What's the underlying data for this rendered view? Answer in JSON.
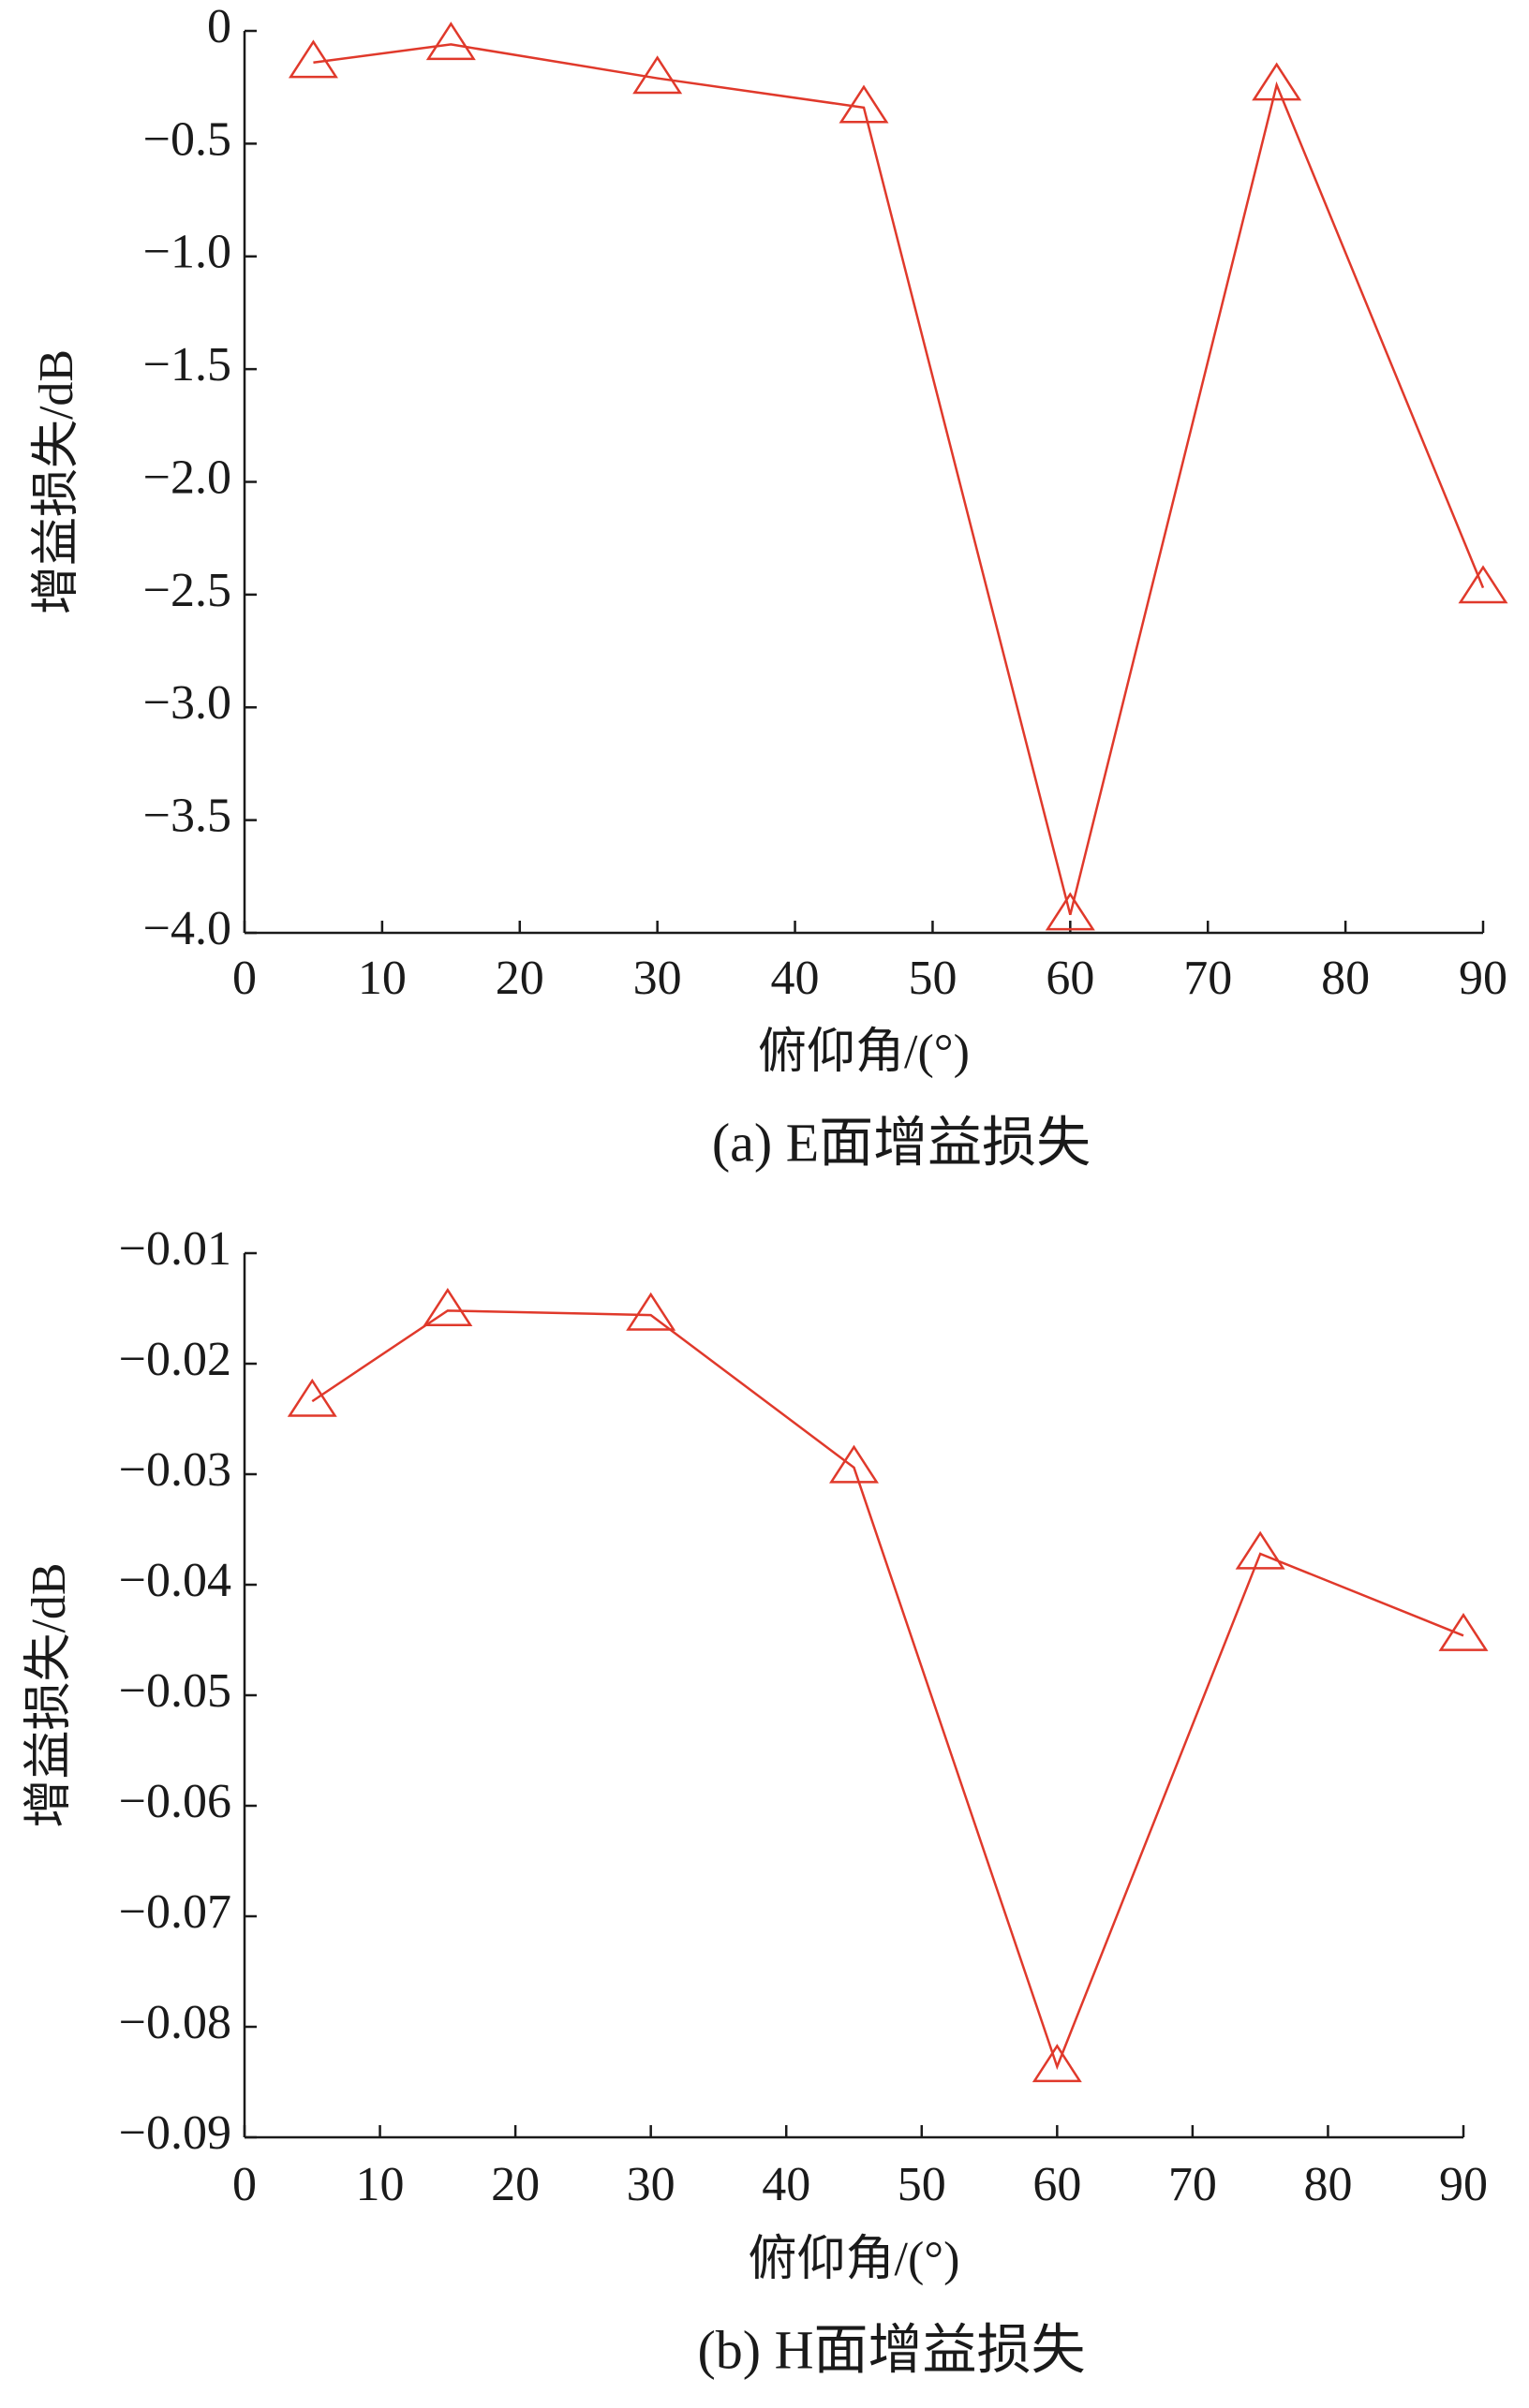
{
  "chart_data": [
    {
      "type": "line",
      "title": "(a)  E面增益损失",
      "xlabel": "俯仰角/(°)",
      "ylabel": "增益损失/dB",
      "x": [
        5,
        15,
        30,
        45,
        60,
        75,
        90
      ],
      "values": [
        -0.14,
        -0.06,
        -0.21,
        -0.34,
        -3.92,
        -0.24,
        -2.47
      ],
      "color": "#e0392b",
      "marker": "triangle",
      "xlim": [
        0,
        90
      ],
      "xticks": [
        0,
        10,
        20,
        30,
        40,
        50,
        60,
        70,
        80,
        90
      ],
      "ylim": [
        -4.0,
        0
      ],
      "yticks": [
        {
          "value": -4.0,
          "label": "−4.0"
        },
        {
          "value": -3.5,
          "label": "−3.5"
        },
        {
          "value": -3.0,
          "label": "−3.0"
        },
        {
          "value": -2.5,
          "label": "−2.5"
        },
        {
          "value": -2.0,
          "label": "−2.0"
        },
        {
          "value": -1.5,
          "label": "−1.5"
        },
        {
          "value": -1.0,
          "label": "−1.0"
        },
        {
          "value": -0.5,
          "label": "−0.5"
        },
        0
      ]
    },
    {
      "type": "line",
      "title": "(b)  H面增益损失",
      "xlabel": "俯仰角/(°)",
      "ylabel": "增益损失/dB",
      "x": [
        5,
        15,
        30,
        45,
        60,
        75,
        90
      ],
      "values": [
        -0.0234,
        -0.0152,
        -0.0156,
        -0.0294,
        -0.0836,
        -0.0372,
        -0.0446
      ],
      "color": "#e0392b",
      "marker": "triangle",
      "xlim": [
        0,
        90
      ],
      "xticks": [
        0,
        10,
        20,
        30,
        40,
        50,
        60,
        70,
        80,
        90
      ],
      "ylim": [
        -0.09,
        -0.01
      ],
      "yticks": [
        {
          "value": -0.09,
          "label": "−0.09"
        },
        {
          "value": -0.08,
          "label": "−0.08"
        },
        {
          "value": -0.07,
          "label": "−0.07"
        },
        {
          "value": -0.06,
          "label": "−0.06"
        },
        {
          "value": -0.05,
          "label": "−0.05"
        },
        {
          "value": -0.04,
          "label": "−0.04"
        },
        {
          "value": -0.03,
          "label": "−0.03"
        },
        {
          "value": -0.02,
          "label": "−0.02"
        },
        {
          "value": -0.01,
          "label": "−0.01"
        }
      ]
    }
  ]
}
